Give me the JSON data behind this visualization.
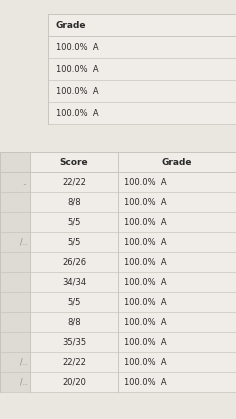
{
  "background_color": "#eae6e0",
  "table_bg": "#f0ede8",
  "top_table": {
    "header": "Grade",
    "rows": [
      "100.0%  A",
      "100.0%  A",
      "100.0%  A",
      "100.0%  A"
    ]
  },
  "bottom_table": {
    "headers": [
      "Score",
      "Grade"
    ],
    "rows": [
      [
        "22/22",
        "100.0%  A"
      ],
      [
        "8/8",
        "100.0%  A"
      ],
      [
        "5/5",
        "100.0%  A"
      ],
      [
        "5/5",
        "100.0%  A"
      ],
      [
        "26/26",
        "100.0%  A"
      ],
      [
        "34/34",
        "100.0%  A"
      ],
      [
        "5/5",
        "100.0%  A"
      ],
      [
        "8/8",
        "100.0%  A"
      ],
      [
        "35/35",
        "100.0%  A"
      ],
      [
        "22/22",
        "100.0%  A"
      ],
      [
        "20/20",
        "100.0%  A"
      ]
    ],
    "left_labels": [
      "..",
      "",
      "",
      "/..",
      "",
      "",
      "",
      "",
      "",
      "/..",
      "/.."
    ]
  },
  "line_color": "#c8c4be",
  "text_color": "#2a2a2a",
  "label_color": "#888880",
  "header_fontsize": 6.5,
  "cell_fontsize": 6.0
}
